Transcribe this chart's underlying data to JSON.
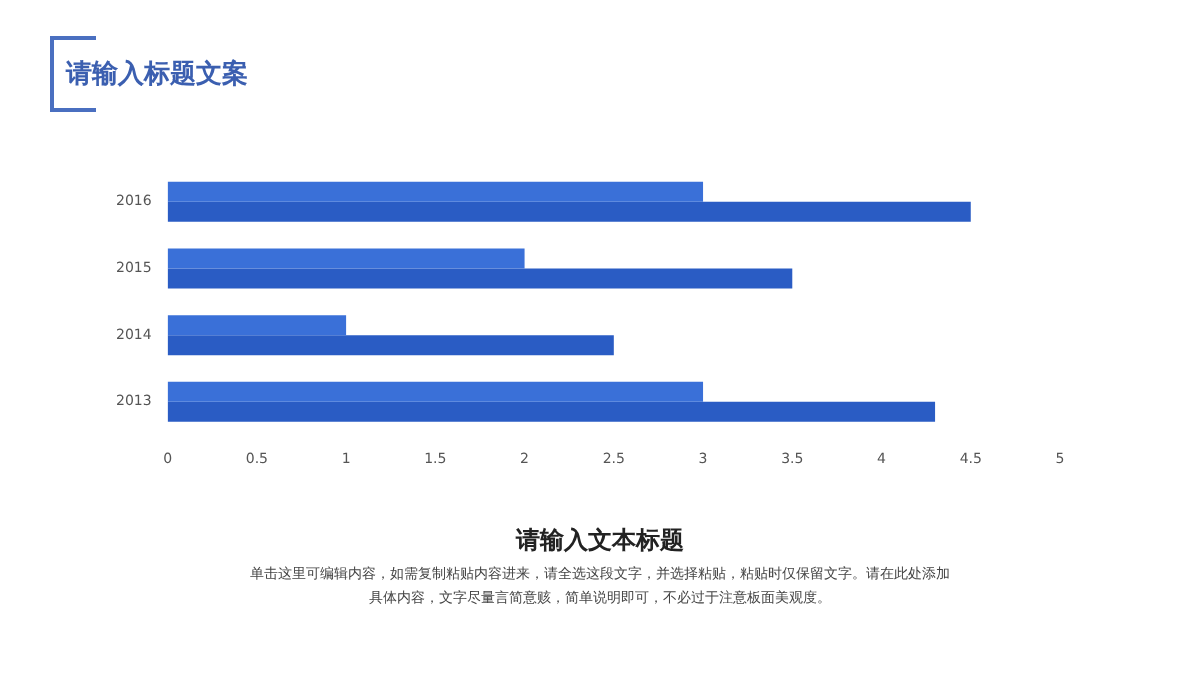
{
  "chart_data": {
    "type": "bar",
    "orientation": "horizontal",
    "title": "请输入标题文案",
    "subtitle": "请输入文本标题",
    "annotations": [
      "单击这里可编辑内容，如需复制粘贴内容进来，请全选这段文字，并选择粘贴，粘贴时仅保留文字。请在此处添加具体内容，文字尽量言简意赅，简单说明即可，不必过于注意板面美观度。"
    ],
    "categories": [
      "2016",
      "2015",
      "2014",
      "2013"
    ],
    "series": [
      {
        "color": "#3a70d8",
        "values": [
          3,
          2,
          1,
          3
        ]
      },
      {
        "color": "#2a5cc4",
        "values": [
          4.5,
          3.5,
          2.5,
          4.3
        ]
      }
    ],
    "xlim": [
      0,
      5
    ],
    "xticks": [
      0,
      0.5,
      1,
      1.5,
      2,
      2.5,
      3,
      3.5,
      4,
      4.5,
      5
    ],
    "grid": false,
    "legend": false
  }
}
